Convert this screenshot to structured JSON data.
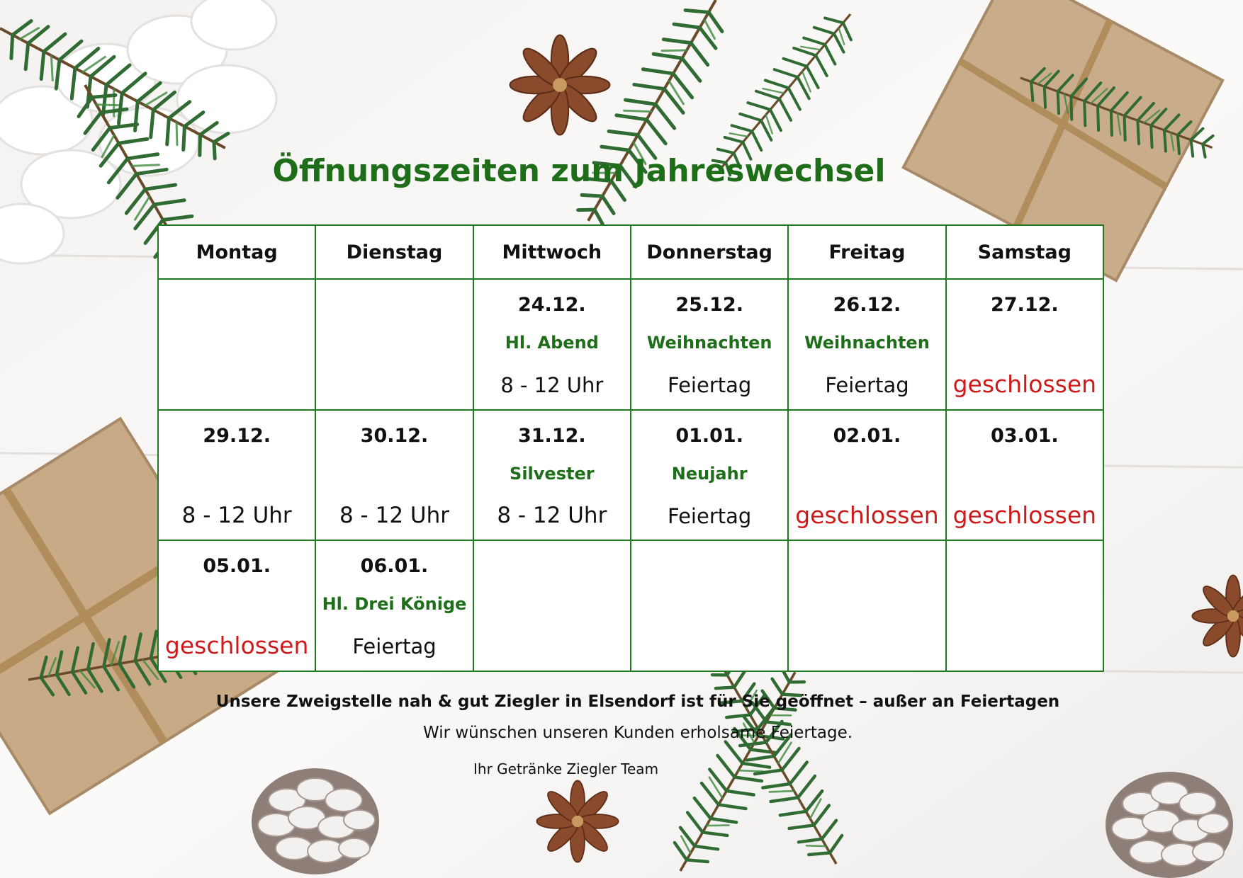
{
  "title": "Öffnungszeiten zum Jahreswechsel",
  "colors": {
    "heading_green": "#1e6e19",
    "closed_red": "#d01a1a",
    "table_border": "#1f7a1f"
  },
  "days": [
    "Montag",
    "Dienstag",
    "Mittwoch",
    "Donnerstag",
    "Freitag",
    "Samstag"
  ],
  "weeks": [
    [
      {
        "date": "",
        "holiday": "",
        "status": ""
      },
      {
        "date": "",
        "holiday": "",
        "status": ""
      },
      {
        "date": "24.12.",
        "holiday": "Hl. Abend",
        "status": "8 - 12 Uhr"
      },
      {
        "date": "25.12.",
        "holiday": "Weihnachten",
        "status": "Feiertag"
      },
      {
        "date": "26.12.",
        "holiday": "Weihnachten",
        "status": "Feiertag"
      },
      {
        "date": "27.12.",
        "holiday": "",
        "status": "geschlossen"
      }
    ],
    [
      {
        "date": "29.12.",
        "holiday": "",
        "status": "8 - 12 Uhr"
      },
      {
        "date": "30.12.",
        "holiday": "",
        "status": "8 - 12 Uhr"
      },
      {
        "date": "31.12.",
        "holiday": "Silvester",
        "status": "8 - 12 Uhr"
      },
      {
        "date": "01.01.",
        "holiday": "Neujahr",
        "status": "Feiertag"
      },
      {
        "date": "02.01.",
        "holiday": "",
        "status": "geschlossen"
      },
      {
        "date": "03.01.",
        "holiday": "",
        "status": "geschlossen"
      }
    ],
    [
      {
        "date": "05.01.",
        "holiday": "",
        "status": "geschlossen"
      },
      {
        "date": "06.01.",
        "holiday": "Hl. Drei Könige",
        "status": "Feiertag"
      },
      {
        "date": "",
        "holiday": "",
        "status": ""
      },
      {
        "date": "",
        "holiday": "",
        "status": ""
      },
      {
        "date": "",
        "holiday": "",
        "status": ""
      },
      {
        "date": "",
        "holiday": "",
        "status": ""
      }
    ]
  ],
  "footer": {
    "note": "Unsere Zweigstelle nah & gut Ziegler in Elsendorf ist für Sie geöffnet – außer an Feiertagen",
    "wish": "Wir wünschen unseren Kunden erholsame Feiertage.",
    "signature": "Ihr Getränke Ziegler Team"
  }
}
